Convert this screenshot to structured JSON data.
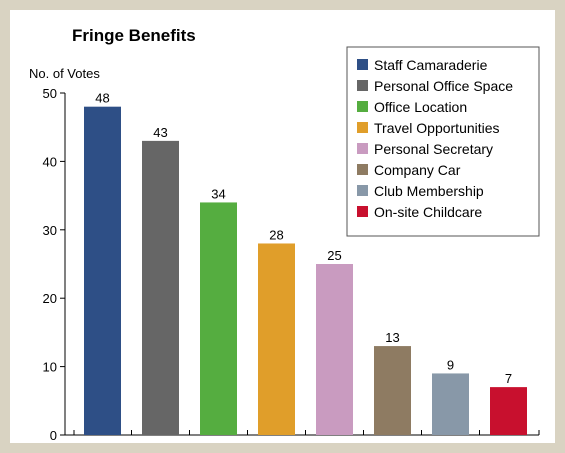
{
  "chart_data": {
    "type": "bar",
    "title": "Fringe Benefits",
    "ylabel": "No. of Votes",
    "xlabel": "",
    "ylim": [
      0,
      50
    ],
    "yticks": [
      0,
      10,
      20,
      30,
      40,
      50
    ],
    "grid": false,
    "legend_position": "top-right",
    "categories": [
      "Staff Camaraderie",
      "Personal Office Space",
      "Office Location",
      "Travel Opportunities",
      "Personal Secretary",
      "Company Car",
      "Club Membership",
      "On-site Childcare"
    ],
    "values": [
      48,
      43,
      34,
      28,
      25,
      13,
      9,
      7
    ],
    "colors": [
      "#2e4f86",
      "#666666",
      "#55ad40",
      "#e09e2a",
      "#c99bc0",
      "#8e7b62",
      "#8898a8",
      "#c8102e"
    ]
  }
}
